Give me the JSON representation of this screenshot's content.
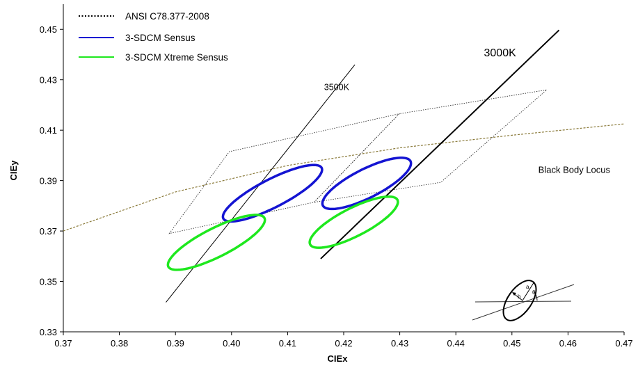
{
  "chart_data": {
    "type": "scatter",
    "title": "",
    "xlabel": "CIEx",
    "ylabel": "CIEy",
    "xlim": [
      0.37,
      0.47
    ],
    "ylim": [
      0.33,
      0.46
    ],
    "x_ticks": [
      "0.37",
      "0.38",
      "0.39",
      "0.40",
      "0.41",
      "0.42",
      "0.43",
      "0.44",
      "0.45",
      "0.46",
      "0.47"
    ],
    "y_ticks": [
      "0.33",
      "0.35",
      "0.37",
      "0.39",
      "0.41",
      "0.43",
      "0.45"
    ],
    "grid": false,
    "legend_position": "top-left",
    "legend": [
      {
        "label": "ANSI C78.377-2008",
        "color": "#000000",
        "style": "dotted"
      },
      {
        "label": "3-SDCM Sensus",
        "color": "#1414d2",
        "style": "solid"
      },
      {
        "label": "3-SDCM Xtreme Sensus",
        "color": "#1ee81e",
        "style": "solid"
      }
    ],
    "black_body_locus": {
      "label": "Black Body Locus",
      "color": "#8a7a3a",
      "x": [
        0.37,
        0.39,
        0.41,
        0.43,
        0.45,
        0.47
      ],
      "y": [
        0.37,
        0.3855,
        0.396,
        0.403,
        0.408,
        0.4125
      ]
    },
    "ansi_quadrangles": [
      {
        "name": "3500K",
        "x": [
          0.3889,
          0.3996,
          0.4299,
          0.4147
        ],
        "y": [
          0.369,
          0.4015,
          0.4165,
          0.3814
        ]
      },
      {
        "name": "3000K",
        "x": [
          0.4147,
          0.4299,
          0.4562,
          0.4373
        ],
        "y": [
          0.3814,
          0.4165,
          0.426,
          0.3893
        ]
      }
    ],
    "cct_lines": [
      {
        "label": "3500K",
        "x": [
          0.3883,
          0.422
        ],
        "y": [
          0.3417,
          0.436
        ],
        "width": 1
      },
      {
        "label": "3000K",
        "x": [
          0.4159,
          0.4584
        ],
        "y": [
          0.359,
          0.4497
        ],
        "width": 2
      }
    ],
    "ellipses": [
      {
        "series": "3-SDCM Sensus",
        "cct": "3500K",
        "cx": 0.4073,
        "cy": 0.385,
        "a": 0.0137,
        "b": 0.004,
        "angle_deg": 53
      },
      {
        "series": "3-SDCM Sensus",
        "cct": "3000K",
        "cx": 0.4241,
        "cy": 0.3889,
        "a": 0.0122,
        "b": 0.0041,
        "angle_deg": 54
      },
      {
        "series": "3-SDCM Xtreme Sensus",
        "cct": "3500K",
        "cx": 0.3973,
        "cy": 0.3655,
        "a": 0.0133,
        "b": 0.0041,
        "angle_deg": 53
      },
      {
        "series": "3-SDCM Xtreme Sensus",
        "cct": "3000K",
        "cx": 0.4218,
        "cy": 0.3735,
        "a": 0.0122,
        "b": 0.004,
        "angle_deg": 54
      }
    ],
    "annotations": [
      {
        "text": "3500K",
        "x": 0.4165,
        "y": 0.4259
      },
      {
        "text": "3000K",
        "x": 0.445,
        "y": 0.4393
      },
      {
        "text": "Black Body Locus",
        "x": 0.4547,
        "y": 0.393
      }
    ],
    "inset_diagram": {
      "labels": [
        "a",
        "b",
        "θ"
      ]
    }
  }
}
